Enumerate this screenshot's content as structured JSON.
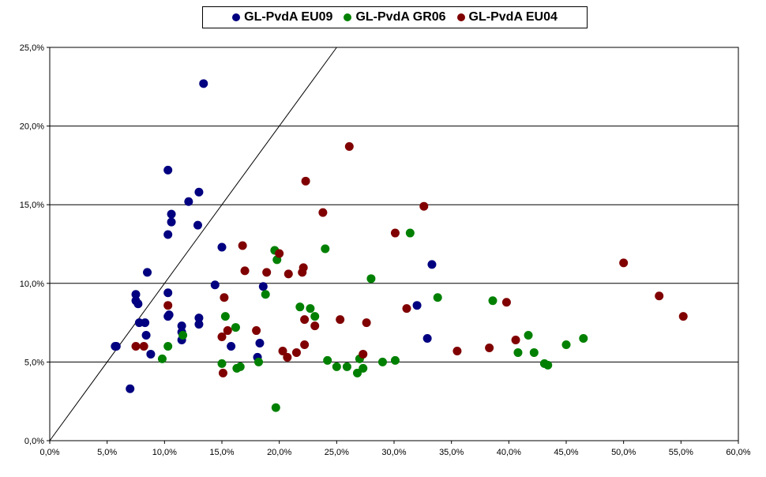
{
  "chart_data": {
    "type": "scatter",
    "title": "",
    "xlabel": "",
    "ylabel": "",
    "xlim": [
      0,
      0.6
    ],
    "ylim": [
      0,
      0.25
    ],
    "x_ticks": [
      "0,0%",
      "5,0%",
      "10,0%",
      "15,0%",
      "20,0%",
      "25,0%",
      "30,0%",
      "35,0%",
      "40,0%",
      "45,0%",
      "50,0%",
      "55,0%",
      "60,0%"
    ],
    "y_ticks": [
      "0,0%",
      "5,0%",
      "10,0%",
      "15,0%",
      "20,0%",
      "25,0%"
    ],
    "grid": "horizontal",
    "legend_position": "top",
    "reference_line": "diagonal x=y",
    "series": [
      {
        "name": "GL-PvdA EU09",
        "color": "#000080",
        "points": [
          [
            0.057,
            0.06
          ],
          [
            0.058,
            0.06
          ],
          [
            0.07,
            0.033
          ],
          [
            0.075,
            0.093
          ],
          [
            0.075,
            0.089
          ],
          [
            0.077,
            0.087
          ],
          [
            0.078,
            0.075
          ],
          [
            0.083,
            0.075
          ],
          [
            0.084,
            0.067
          ],
          [
            0.085,
            0.107
          ],
          [
            0.088,
            0.055
          ],
          [
            0.103,
            0.131
          ],
          [
            0.103,
            0.094
          ],
          [
            0.103,
            0.079
          ],
          [
            0.104,
            0.08
          ],
          [
            0.103,
            0.172
          ],
          [
            0.106,
            0.144
          ],
          [
            0.106,
            0.139
          ],
          [
            0.115,
            0.073
          ],
          [
            0.115,
            0.069
          ],
          [
            0.115,
            0.064
          ],
          [
            0.121,
            0.152
          ],
          [
            0.129,
            0.137
          ],
          [
            0.13,
            0.158
          ],
          [
            0.13,
            0.074
          ],
          [
            0.13,
            0.078
          ],
          [
            0.134,
            0.227
          ],
          [
            0.144,
            0.099
          ],
          [
            0.15,
            0.123
          ],
          [
            0.158,
            0.06
          ],
          [
            0.181,
            0.053
          ],
          [
            0.183,
            0.062
          ],
          [
            0.186,
            0.098
          ],
          [
            0.32,
            0.086
          ],
          [
            0.329,
            0.065
          ],
          [
            0.333,
            0.112
          ]
        ]
      },
      {
        "name": "GL-PvdA GR06",
        "color": "#008000",
        "points": [
          [
            0.098,
            0.052
          ],
          [
            0.103,
            0.06
          ],
          [
            0.116,
            0.067
          ],
          [
            0.15,
            0.049
          ],
          [
            0.153,
            0.079
          ],
          [
            0.162,
            0.072
          ],
          [
            0.163,
            0.046
          ],
          [
            0.166,
            0.047
          ],
          [
            0.188,
            0.093
          ],
          [
            0.196,
            0.121
          ],
          [
            0.198,
            0.115
          ],
          [
            0.197,
            0.021
          ],
          [
            0.182,
            0.05
          ],
          [
            0.218,
            0.085
          ],
          [
            0.227,
            0.084
          ],
          [
            0.231,
            0.079
          ],
          [
            0.24,
            0.122
          ],
          [
            0.242,
            0.051
          ],
          [
            0.25,
            0.047
          ],
          [
            0.259,
            0.047
          ],
          [
            0.268,
            0.043
          ],
          [
            0.27,
            0.052
          ],
          [
            0.273,
            0.046
          ],
          [
            0.28,
            0.103
          ],
          [
            0.29,
            0.05
          ],
          [
            0.301,
            0.051
          ],
          [
            0.314,
            0.132
          ],
          [
            0.338,
            0.091
          ],
          [
            0.386,
            0.089
          ],
          [
            0.408,
            0.056
          ],
          [
            0.417,
            0.067
          ],
          [
            0.422,
            0.056
          ],
          [
            0.431,
            0.049
          ],
          [
            0.434,
            0.048
          ],
          [
            0.45,
            0.061
          ],
          [
            0.465,
            0.065
          ]
        ]
      },
      {
        "name": "GL-PvdA EU04",
        "color": "#800000",
        "points": [
          [
            0.075,
            0.06
          ],
          [
            0.082,
            0.06
          ],
          [
            0.103,
            0.086
          ],
          [
            0.15,
            0.066
          ],
          [
            0.151,
            0.043
          ],
          [
            0.152,
            0.091
          ],
          [
            0.155,
            0.07
          ],
          [
            0.168,
            0.124
          ],
          [
            0.17,
            0.108
          ],
          [
            0.18,
            0.07
          ],
          [
            0.189,
            0.107
          ],
          [
            0.2,
            0.119
          ],
          [
            0.203,
            0.057
          ],
          [
            0.207,
            0.053
          ],
          [
            0.208,
            0.106
          ],
          [
            0.215,
            0.056
          ],
          [
            0.22,
            0.107
          ],
          [
            0.221,
            0.11
          ],
          [
            0.222,
            0.077
          ],
          [
            0.222,
            0.061
          ],
          [
            0.223,
            0.165
          ],
          [
            0.231,
            0.073
          ],
          [
            0.238,
            0.145
          ],
          [
            0.253,
            0.077
          ],
          [
            0.261,
            0.187
          ],
          [
            0.273,
            0.055
          ],
          [
            0.276,
            0.075
          ],
          [
            0.301,
            0.132
          ],
          [
            0.311,
            0.084
          ],
          [
            0.326,
            0.149
          ],
          [
            0.355,
            0.057
          ],
          [
            0.383,
            0.059
          ],
          [
            0.398,
            0.088
          ],
          [
            0.406,
            0.064
          ],
          [
            0.5,
            0.113
          ],
          [
            0.531,
            0.092
          ],
          [
            0.552,
            0.079
          ]
        ]
      }
    ]
  }
}
